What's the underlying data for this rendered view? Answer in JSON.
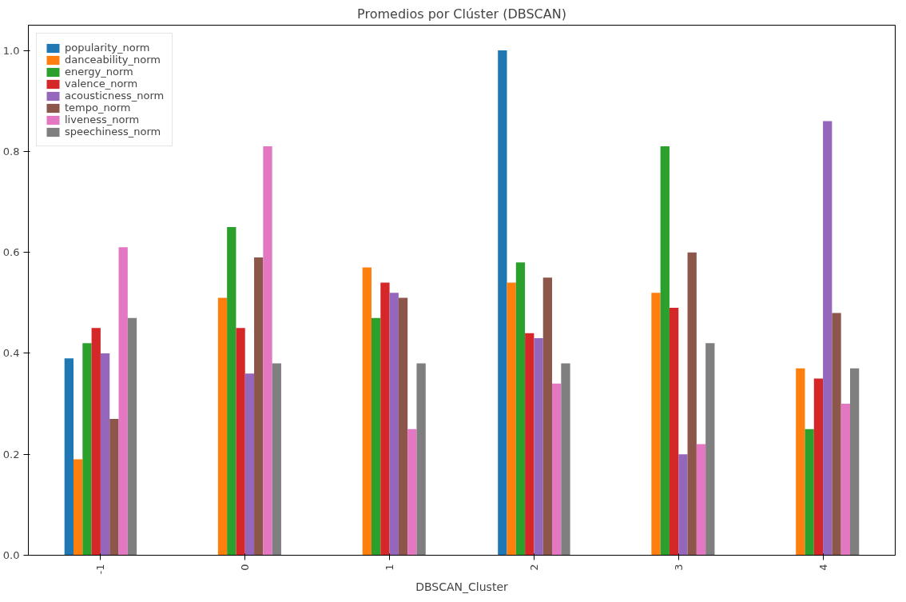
{
  "chart_data": {
    "type": "bar",
    "title": "Promedios por Clúster (DBSCAN)",
    "xlabel": "DBSCAN_Cluster",
    "categories": [
      "-1",
      "0",
      "1",
      "2",
      "3",
      "4"
    ],
    "series": [
      {
        "name": "popularity_norm",
        "color": "#1f77b4",
        "values": [
          0.39,
          0,
          0,
          1.0,
          0,
          0
        ]
      },
      {
        "name": "danceability_norm",
        "color": "#ff7f0e",
        "values": [
          0.19,
          0.51,
          0.57,
          0.54,
          0.52,
          0.37
        ]
      },
      {
        "name": "energy_norm",
        "color": "#2ca02c",
        "values": [
          0.42,
          0.65,
          0.47,
          0.58,
          0.81,
          0.25
        ]
      },
      {
        "name": "valence_norm",
        "color": "#d62728",
        "values": [
          0.45,
          0.45,
          0.54,
          0.44,
          0.49,
          0.35
        ]
      },
      {
        "name": "acousticness_norm",
        "color": "#9467bd",
        "values": [
          0.4,
          0.36,
          0.52,
          0.43,
          0.2,
          0.86
        ]
      },
      {
        "name": "tempo_norm",
        "color": "#8c564b",
        "values": [
          0.27,
          0.59,
          0.51,
          0.55,
          0.6,
          0.48
        ]
      },
      {
        "name": "liveness_norm",
        "color": "#e377c2",
        "values": [
          0.61,
          0.81,
          0.25,
          0.34,
          0.22,
          0.3
        ]
      },
      {
        "name": "speechiness_norm",
        "color": "#7f7f7f",
        "values": [
          0.47,
          0.38,
          0.38,
          0.38,
          0.42,
          0.37
        ]
      }
    ],
    "ylim": [
      0,
      1.05
    ],
    "yticks": [
      {
        "value": 0,
        "label": "0.0"
      },
      0.2,
      0.4,
      0.6,
      0.8,
      {
        "value": 1,
        "label": "1.0"
      }
    ],
    "grid": false,
    "legend": "top left"
  }
}
